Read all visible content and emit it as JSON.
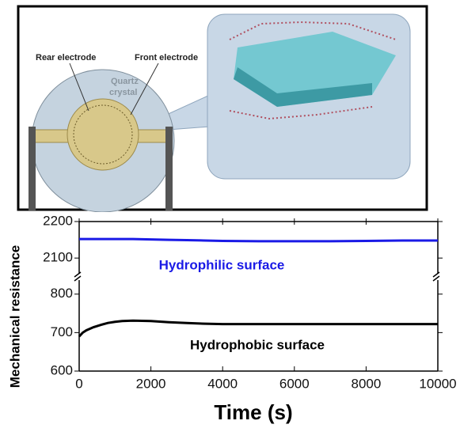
{
  "diagram": {
    "labels": [
      "Rear electrode",
      "Front electrode",
      "Quartz",
      "crystal"
    ]
  },
  "chart_data": {
    "type": "line",
    "y_label": "Mechanical resistance",
    "x_label": "Time (s)",
    "x": [
      0,
      100,
      200,
      400,
      600,
      800,
      1000,
      1200,
      1500,
      2000,
      2500,
      3000,
      3500,
      4000,
      5000,
      6000,
      7000,
      8000,
      9000,
      10000
    ],
    "series": [
      {
        "name": "Hydrophilic surface",
        "color": "#1a1ae6",
        "values": [
          2152,
          2152,
          2152,
          2152,
          2152,
          2152,
          2152,
          2152,
          2152,
          2151,
          2150,
          2149,
          2148,
          2147,
          2146,
          2146,
          2146,
          2147,
          2148,
          2148
        ]
      },
      {
        "name": "Hydrophobic surface",
        "color": "#000000",
        "values": [
          690,
          700,
          706,
          714,
          720,
          725,
          728,
          730,
          731,
          730,
          727,
          725,
          723,
          722,
          722,
          722,
          722,
          722,
          722,
          722
        ]
      }
    ],
    "xlim": [
      0,
      10000
    ],
    "xticks": [
      0,
      2000,
      4000,
      6000,
      8000,
      10000
    ],
    "ylim": [
      600,
      2200
    ],
    "ybreak": [
      820,
      2070
    ],
    "yticks": [
      600,
      700,
      800,
      2100,
      2200
    ]
  }
}
